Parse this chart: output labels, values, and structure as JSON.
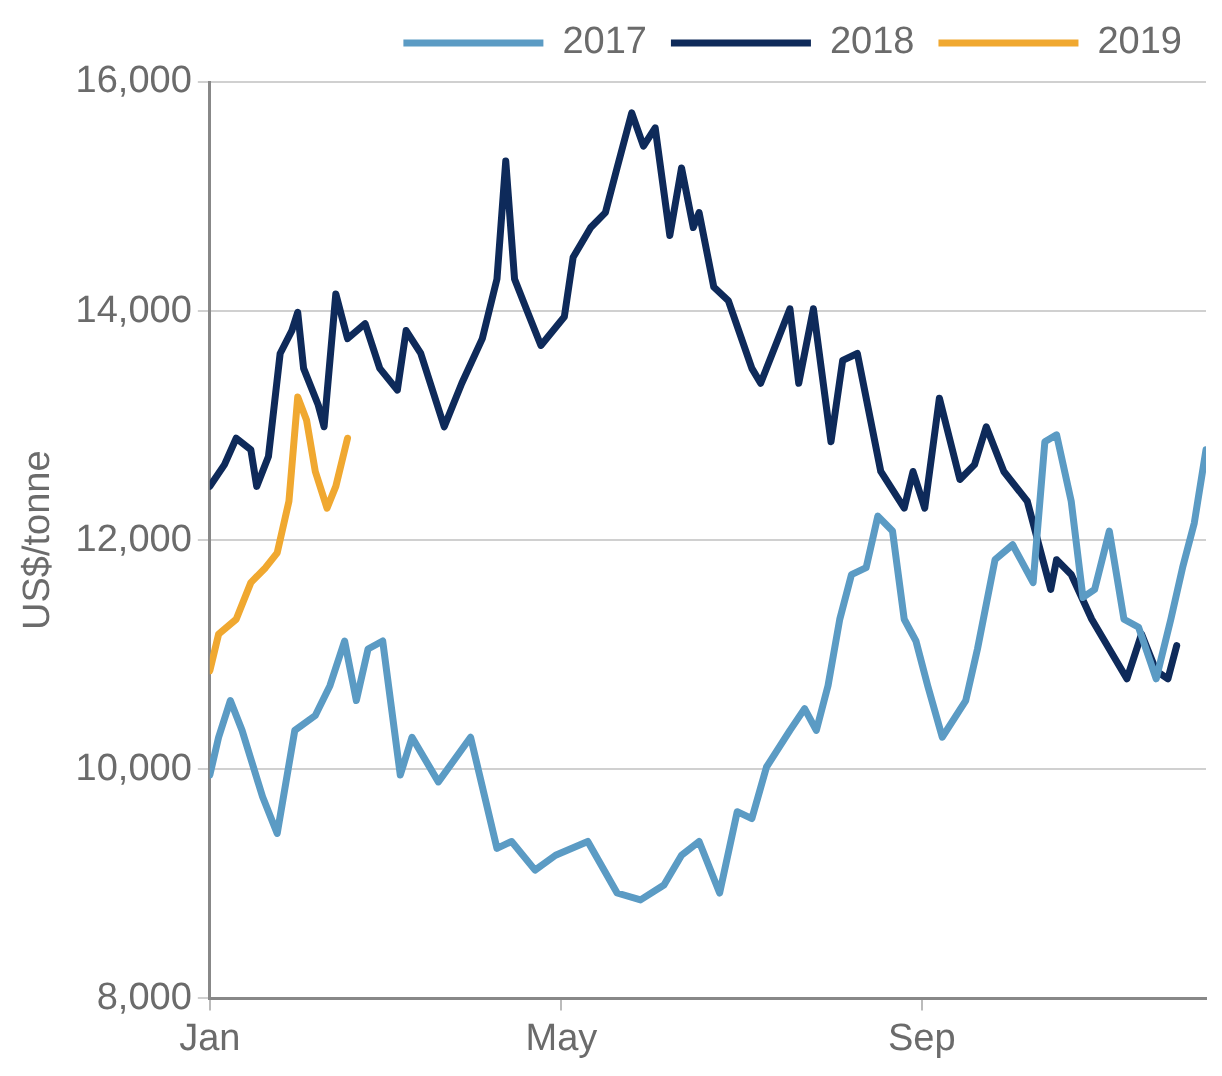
{
  "chart_data": {
    "type": "line",
    "ylabel": "US$/tonne",
    "xlim": [
      "--01-01",
      "--12-07"
    ],
    "xticks": [
      {
        "value": "--01-01",
        "label": "Jan"
      },
      {
        "value": "--05-01",
        "label": "May"
      },
      {
        "value": "--09-01",
        "label": "Sep"
      }
    ],
    "ylim": [
      8000,
      16000
    ],
    "yticks": [
      {
        "value": 8000,
        "label": "8,000"
      },
      {
        "value": 10000,
        "label": "10,000"
      },
      {
        "value": 12000,
        "label": "12,000"
      },
      {
        "value": 14000,
        "label": "14,000"
      },
      {
        "value": 16000,
        "label": "16,000"
      }
    ],
    "grid": "y",
    "legend": "top right",
    "marker": "none",
    "line_style": "solid",
    "series": [
      {
        "name": "2017",
        "color": "#5b9bc4",
        "x": [
          "--01-01",
          "--01-04",
          "--01-08",
          "--01-12",
          "--01-19",
          "--01-24",
          "--01-30",
          "--02-06",
          "--02-11",
          "--02-16",
          "--02-20",
          "--02-24",
          "--03-01",
          "--03-07",
          "--03-11",
          "--03-20",
          "--03-31",
          "--04-09",
          "--04-14",
          "--04-22",
          "--04-29",
          "--05-10",
          "--05-20",
          "--05-28",
          "--06-05",
          "--06-11",
          "--06-17",
          "--06-24",
          "--06-30",
          "--07-05",
          "--07-10",
          "--07-18",
          "--07-23",
          "--07-27",
          "--07-31",
          "--08-04",
          "--08-08",
          "--08-13",
          "--08-17",
          "--08-22",
          "--08-26",
          "--08-30",
          "--09-03",
          "--09-08",
          "--09-16",
          "--09-20",
          "--09-26",
          "--10-02",
          "--10-09",
          "--10-13",
          "--10-17",
          "--10-22",
          "--10-26",
          "--10-30",
          "--11-04",
          "--11-09",
          "--11-14",
          "--11-20",
          "--11-25",
          "--11-29",
          "--12-03",
          "--12-07"
        ],
        "values": [
          9950,
          10280,
          10600,
          10340,
          9760,
          9440,
          10340,
          10470,
          10730,
          11120,
          10600,
          11050,
          11120,
          9950,
          10280,
          9890,
          10280,
          9310,
          9370,
          9120,
          9250,
          9370,
          8920,
          8860,
          8990,
          9250,
          9370,
          8920,
          9630,
          9570,
          10020,
          10340,
          10530,
          10340,
          10730,
          11310,
          11700,
          11760,
          12210,
          12080,
          11310,
          11120,
          10730,
          10280,
          10600,
          11050,
          11830,
          11960,
          11630,
          12860,
          12920,
          12340,
          11500,
          11570,
          12080,
          11310,
          11240,
          10790,
          11310,
          11760,
          12150,
          12790
        ]
      },
      {
        "name": "2018",
        "color": "#0e2a5a",
        "x": [
          "--01-01",
          "--01-06",
          "--01-10",
          "--01-15",
          "--01-17",
          "--01-21",
          "--01-25",
          "--01-29",
          "--01-31",
          "--02-02",
          "--02-07",
          "--02-09",
          "--02-13",
          "--02-17",
          "--02-23",
          "--02-28",
          "--03-06",
          "--03-09",
          "--03-14",
          "--03-22",
          "--03-28",
          "--04-04",
          "--04-09",
          "--04-12",
          "--04-15",
          "--04-19",
          "--04-24",
          "--05-02",
          "--05-05",
          "--05-11",
          "--05-16",
          "--05-20",
          "--05-25",
          "--05-29",
          "--06-02",
          "--06-07",
          "--06-11",
          "--06-15",
          "--06-17",
          "--06-22",
          "--06-27",
          "--07-05",
          "--07-08",
          "--07-18",
          "--07-21",
          "--07-26",
          "--08-01",
          "--08-05",
          "--08-10",
          "--08-18",
          "--08-26",
          "--08-29",
          "--09-02",
          "--09-07",
          "--09-14",
          "--09-19",
          "--09-23",
          "--09-29",
          "--10-07",
          "--10-15",
          "--10-17",
          "--10-22",
          "--10-29",
          "--11-10",
          "--11-15",
          "--11-20",
          "--11-24",
          "--11-27"
        ],
        "values": [
          12470,
          12660,
          12890,
          12790,
          12470,
          12730,
          13630,
          13830,
          13990,
          13500,
          13180,
          12990,
          14150,
          13760,
          13890,
          13500,
          13310,
          13830,
          13630,
          12990,
          13370,
          13760,
          14280,
          15310,
          14280,
          14020,
          13700,
          13950,
          14470,
          14730,
          14860,
          15250,
          15730,
          15440,
          15600,
          14660,
          15250,
          14730,
          14860,
          14210,
          14090,
          13500,
          13370,
          14020,
          13370,
          14020,
          12860,
          13570,
          13630,
          12600,
          12280,
          12600,
          12280,
          13240,
          12530,
          12660,
          12990,
          12600,
          12340,
          11570,
          11830,
          11700,
          11310,
          10790,
          11180,
          10860,
          10790,
          11080
        ]
      },
      {
        "name": "2019",
        "color": "#f0a830",
        "x": [
          "--01-01",
          "--01-04",
          "--01-10",
          "--01-15",
          "--01-20",
          "--01-24",
          "--01-28",
          "--01-31",
          "--02-03",
          "--02-06",
          "--02-10",
          "--02-13",
          "--02-17"
        ],
        "values": [
          10860,
          11180,
          11310,
          11630,
          11760,
          11890,
          12340,
          13250,
          13050,
          12600,
          12280,
          12470,
          12890
        ]
      }
    ]
  }
}
